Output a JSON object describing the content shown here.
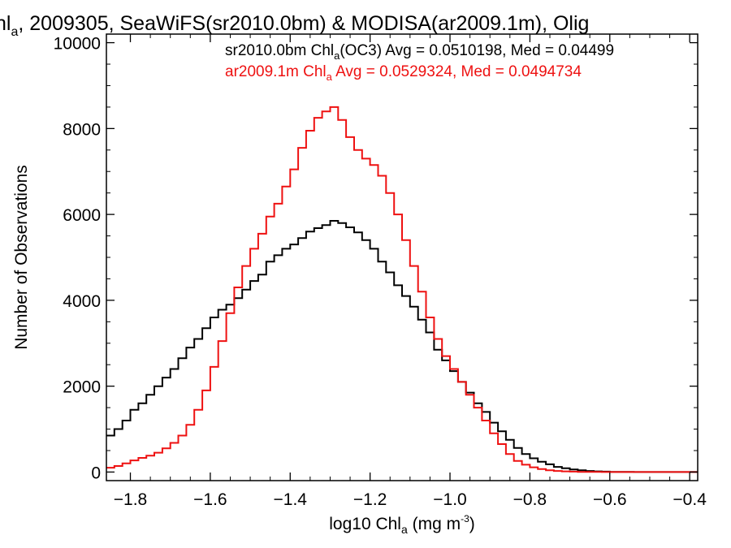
{
  "chart_data": {
    "type": "line",
    "step": true,
    "title": {
      "pre": "hl",
      "sub": "a",
      "post": ", 2009305, SeaWiFS(sr2010.0bm) & MODISA(ar2009.1m), Olig"
    },
    "xlabel": {
      "pre": "log10 Chl",
      "sub": "a",
      "mid": " (mg m",
      "sup": "-3",
      "post": ")"
    },
    "ylabel": "Number of Observations",
    "xlim": [
      -1.86,
      -0.38
    ],
    "ylim": [
      -200,
      10200
    ],
    "xticks": [
      -1.8,
      -1.6,
      -1.4,
      -1.2,
      -1.0,
      -0.8,
      -0.6,
      -0.4
    ],
    "xtick_labels": [
      "−1.8",
      "−1.6",
      "−1.4",
      "−1.2",
      "−1.0",
      "−0.8",
      "−0.6",
      "−0.4"
    ],
    "yticks": [
      0,
      2000,
      4000,
      6000,
      8000,
      10000
    ],
    "ytick_labels": [
      "0",
      "2000",
      "4000",
      "6000",
      "8000",
      "10000"
    ],
    "grid": false,
    "legend_position": "top-right",
    "legend": [
      {
        "pre": "sr2010.0bm Chl",
        "sub": "a",
        "post": "(OC3) Avg = 0.0510198, Med = 0.04499",
        "color": "#000000"
      },
      {
        "pre": "ar2009.1m Chl",
        "sub": "a",
        "post": " Avg = 0.0529324, Med = 0.0494734",
        "color": "#ee1111"
      }
    ],
    "series": [
      {
        "color": "#000000",
        "x": [
          -1.86,
          -1.84,
          -1.82,
          -1.8,
          -1.78,
          -1.76,
          -1.74,
          -1.72,
          -1.7,
          -1.68,
          -1.66,
          -1.64,
          -1.62,
          -1.6,
          -1.58,
          -1.56,
          -1.54,
          -1.52,
          -1.5,
          -1.48,
          -1.46,
          -1.44,
          -1.42,
          -1.4,
          -1.38,
          -1.36,
          -1.34,
          -1.32,
          -1.3,
          -1.28,
          -1.26,
          -1.24,
          -1.22,
          -1.2,
          -1.18,
          -1.16,
          -1.14,
          -1.12,
          -1.1,
          -1.08,
          -1.06,
          -1.04,
          -1.02,
          -1.0,
          -0.98,
          -0.96,
          -0.94,
          -0.92,
          -0.9,
          -0.88,
          -0.86,
          -0.84,
          -0.82,
          -0.8,
          -0.78,
          -0.76,
          -0.74,
          -0.72,
          -0.7,
          -0.68,
          -0.66,
          -0.64,
          -0.62,
          -0.6,
          -0.58,
          -0.56,
          -0.54,
          -0.52,
          -0.5,
          -0.48,
          -0.46,
          -0.44,
          -0.42,
          -0.4,
          -0.38
        ],
        "y": [
          850,
          1000,
          1200,
          1450,
          1600,
          1800,
          2000,
          2200,
          2400,
          2650,
          2900,
          3100,
          3350,
          3600,
          3780,
          3900,
          4050,
          4250,
          4450,
          4600,
          4900,
          5050,
          5200,
          5300,
          5450,
          5600,
          5680,
          5750,
          5850,
          5800,
          5700,
          5580,
          5400,
          5200,
          4900,
          4650,
          4350,
          4100,
          3850,
          3550,
          3250,
          2850,
          2600,
          2350,
          2100,
          1850,
          1600,
          1400,
          1150,
          950,
          750,
          560,
          420,
          320,
          240,
          180,
          120,
          90,
          60,
          40,
          25,
          15,
          10,
          5,
          3,
          2,
          1,
          0,
          0,
          0,
          0,
          0,
          0,
          0,
          0
        ]
      },
      {
        "color": "#ee1111",
        "x": [
          -1.86,
          -1.84,
          -1.82,
          -1.8,
          -1.78,
          -1.76,
          -1.74,
          -1.72,
          -1.7,
          -1.68,
          -1.66,
          -1.64,
          -1.62,
          -1.6,
          -1.58,
          -1.56,
          -1.54,
          -1.52,
          -1.5,
          -1.48,
          -1.46,
          -1.44,
          -1.42,
          -1.4,
          -1.38,
          -1.36,
          -1.34,
          -1.32,
          -1.3,
          -1.28,
          -1.26,
          -1.24,
          -1.22,
          -1.2,
          -1.18,
          -1.16,
          -1.14,
          -1.12,
          -1.1,
          -1.08,
          -1.06,
          -1.04,
          -1.02,
          -1.0,
          -0.98,
          -0.96,
          -0.94,
          -0.92,
          -0.9,
          -0.88,
          -0.86,
          -0.84,
          -0.82,
          -0.8,
          -0.78,
          -0.76,
          -0.74,
          -0.72,
          -0.7,
          -0.68,
          -0.66,
          -0.64,
          -0.62,
          -0.6,
          -0.58,
          -0.56,
          -0.54,
          -0.52,
          -0.5,
          -0.48,
          -0.46,
          -0.44,
          -0.42,
          -0.4,
          -0.38
        ],
        "y": [
          100,
          140,
          200,
          270,
          330,
          380,
          450,
          550,
          680,
          850,
          1100,
          1450,
          1900,
          2450,
          3050,
          3700,
          4300,
          4800,
          5200,
          5550,
          5950,
          6250,
          6650,
          7050,
          7550,
          7950,
          8250,
          8400,
          8500,
          8200,
          7800,
          7500,
          7300,
          7150,
          6900,
          6500,
          6000,
          5400,
          4800,
          4200,
          3600,
          3100,
          2700,
          2400,
          2100,
          1800,
          1500,
          1200,
          900,
          650,
          420,
          260,
          170,
          110,
          70,
          40,
          25,
          15,
          10,
          5,
          3,
          2,
          1,
          0,
          0,
          0,
          0,
          0,
          0,
          0,
          0,
          0,
          0,
          0,
          0
        ]
      }
    ]
  }
}
